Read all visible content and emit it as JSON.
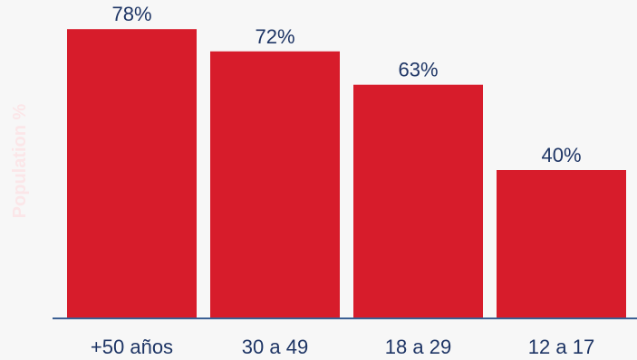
{
  "chart_data": {
    "type": "bar",
    "categories": [
      "+50 años",
      "30 a 49",
      "18 a 29",
      "12 a 17"
    ],
    "values": [
      78,
      72,
      63,
      40
    ],
    "value_labels": [
      "78%",
      "72%",
      "63%",
      "40%"
    ],
    "title": "",
    "xlabel": "",
    "ylabel": "Population %",
    "ylim": [
      0,
      100
    ],
    "grid": false,
    "legend": "none",
    "colors": {
      "bar": "#d71c2b",
      "text": "#1e3565",
      "axis": "#3b5f93",
      "ylabel": "#fbe6e8",
      "background": "#f7f7f7"
    }
  }
}
